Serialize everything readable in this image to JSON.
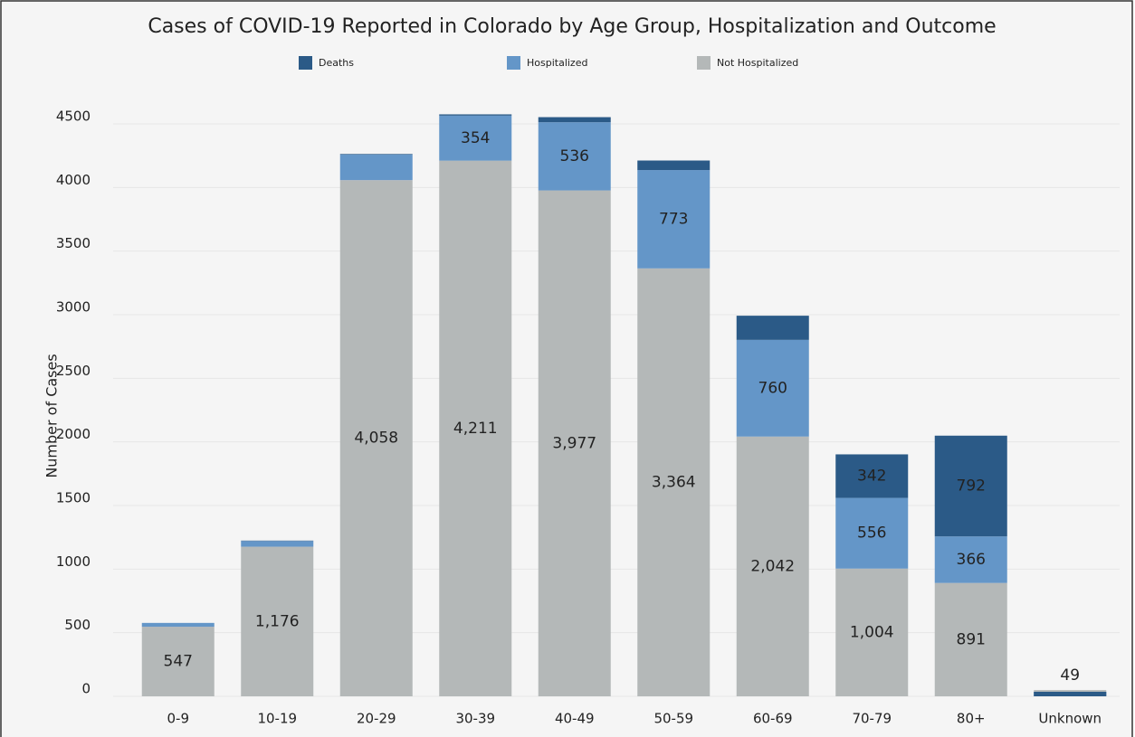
{
  "chart_data": {
    "type": "stacked_bar",
    "title": "Cases of COVID-19 Reported in Colorado by Age Group, Hospitalization and Outcome",
    "y_label": "Number of Cases",
    "categories": [
      "0-9",
      "10-19",
      "20-29",
      "30-39",
      "40-49",
      "50-59",
      "60-69",
      "70-79",
      "80+",
      "Unknown"
    ],
    "series": [
      {
        "name": "Not Hospitalized",
        "color": "#b4b8b8",
        "values": [
          547,
          1176,
          4058,
          4211,
          3977,
          3364,
          2042,
          1004,
          891,
          49
        ],
        "value_labels": [
          "547",
          "1,176",
          "4,058",
          "4,211",
          "3,977",
          "3,364",
          "2,042",
          "1,004",
          "891",
          "49"
        ]
      },
      {
        "name": "Hospitalized",
        "color": "#6496c8",
        "values": [
          30,
          45,
          200,
          354,
          536,
          773,
          760,
          556,
          366,
          0
        ],
        "value_labels": [
          null,
          null,
          null,
          "354",
          "536",
          "773",
          "760",
          "556",
          "366",
          null
        ]
      },
      {
        "name": "Deaths",
        "color": "#2b5a87",
        "values": [
          0,
          3,
          5,
          10,
          40,
          75,
          190,
          342,
          792,
          0
        ],
        "value_labels": [
          null,
          null,
          null,
          null,
          null,
          null,
          null,
          "342",
          "792",
          null
        ]
      }
    ],
    "legend_order": [
      2,
      1,
      0
    ],
    "ylim": [
      0,
      4500
    ],
    "yticks": [
      0,
      500,
      1000,
      1500,
      2000,
      2500,
      3000,
      3500,
      4000,
      4500
    ],
    "grid": true
  }
}
